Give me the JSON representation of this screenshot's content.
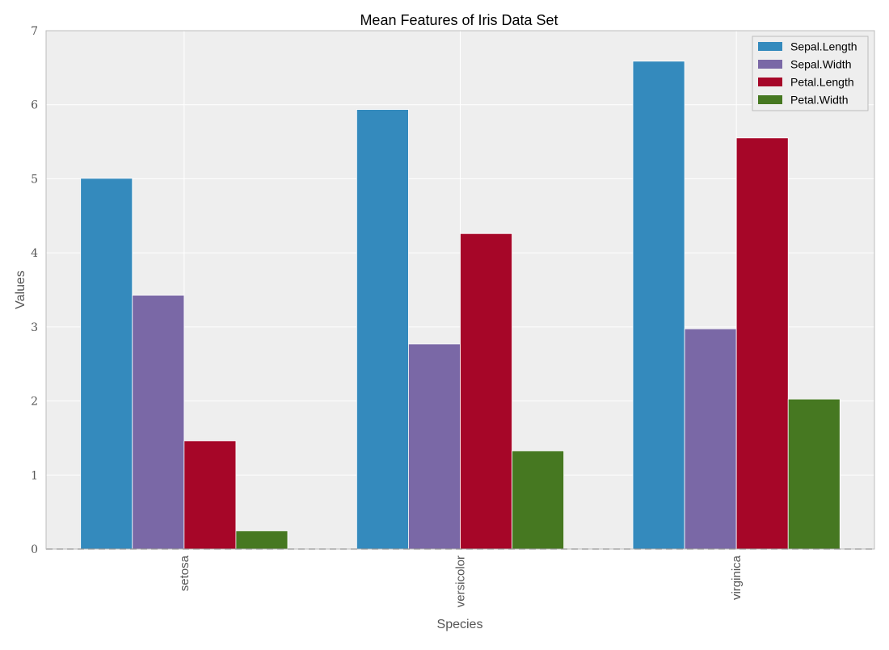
{
  "chart_data": {
    "type": "bar",
    "title": "Mean Features of Iris Data Set",
    "xlabel": "Species",
    "ylabel": "Values",
    "categories": [
      "setosa",
      "versicolor",
      "virginica"
    ],
    "series": [
      {
        "name": "Sepal.Length",
        "color": "#348abd",
        "values": [
          5.006,
          5.936,
          6.588
        ]
      },
      {
        "name": "Sepal.Width",
        "color": "#7a68a6",
        "values": [
          3.428,
          2.77,
          2.974
        ]
      },
      {
        "name": "Petal.Length",
        "color": "#a60628",
        "values": [
          1.462,
          4.26,
          5.552
        ]
      },
      {
        "name": "Petal.Width",
        "color": "#467821",
        "values": [
          0.246,
          1.326,
          2.026
        ]
      }
    ],
    "ylim": [
      0,
      7
    ],
    "yticks": [
      0,
      1,
      2,
      3,
      4,
      5,
      6,
      7
    ],
    "grid": true,
    "legend_position": "top-right",
    "baseline": {
      "value": 0,
      "style": "dashed",
      "color": "#000000"
    },
    "background_color": "#eeeeee",
    "grid_color": "#ffffff"
  }
}
